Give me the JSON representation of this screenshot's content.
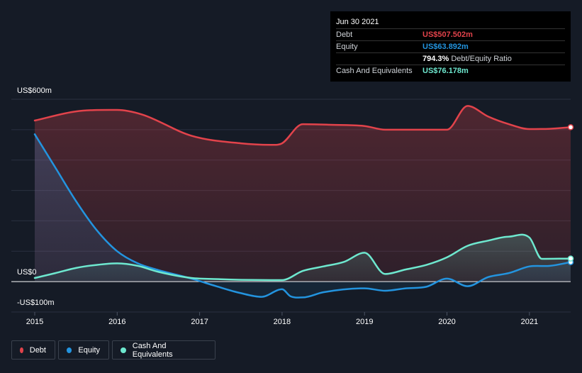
{
  "tooltip": {
    "date": "Jun 30 2021",
    "debt_label": "Debt",
    "debt_value": "US$507.502m",
    "equity_label": "Equity",
    "equity_value": "US$63.892m",
    "ratio_value": "794.3%",
    "ratio_label": "Debt/Equity Ratio",
    "cash_label": "Cash And Equivalents",
    "cash_value": "US$76.178m"
  },
  "legend": {
    "debt": "Debt",
    "equity": "Equity",
    "cash": "Cash And Equivalents"
  },
  "colors": {
    "debt": "#e2434b",
    "equity": "#2394df",
    "cash": "#6ee8cf",
    "background": "#151b26"
  },
  "chart_data": {
    "type": "area",
    "y_tick_labels": [
      "US$600m",
      "US$0",
      "-US$100m"
    ],
    "x_tick_labels": [
      "2015",
      "2016",
      "2017",
      "2018",
      "2019",
      "2020",
      "2021"
    ],
    "ylim": [
      -100,
      600
    ],
    "grid": true,
    "legend_position": "bottom-left",
    "series": [
      {
        "name": "Debt",
        "x": [
          2015.0,
          2015.5,
          2016.0,
          2016.3,
          2016.9,
          2017.5,
          2017.9,
          2018.0,
          2018.25,
          2018.6,
          2019.0,
          2019.25,
          2019.6,
          2020.0,
          2020.25,
          2020.5,
          2020.75,
          2021.0,
          2021.25,
          2021.5
        ],
        "y": [
          530,
          560,
          565,
          550,
          480,
          455,
          450,
          455,
          518,
          516,
          512,
          500,
          500,
          500,
          578,
          543,
          518,
          502,
          503,
          508
        ]
      },
      {
        "name": "Equity",
        "x": [
          2015.0,
          2015.25,
          2015.5,
          2015.75,
          2016.0,
          2016.25,
          2016.5,
          2016.9,
          2017.2,
          2017.5,
          2017.75,
          2018.0,
          2018.1,
          2018.25,
          2018.5,
          2019.0,
          2019.25,
          2019.5,
          2019.75,
          2020.0,
          2020.25,
          2020.5,
          2020.75,
          2021.0,
          2021.25,
          2021.5
        ],
        "y": [
          485,
          375,
          265,
          170,
          100,
          60,
          38,
          10,
          -15,
          -38,
          -50,
          -25,
          -48,
          -52,
          -35,
          -22,
          -30,
          -22,
          -17,
          10,
          -15,
          15,
          28,
          50,
          52,
          64
        ]
      },
      {
        "name": "Cash And Equivalents",
        "x": [
          2015.0,
          2015.25,
          2015.5,
          2015.75,
          2016.0,
          2016.25,
          2016.5,
          2016.9,
          2017.25,
          2017.5,
          2018.0,
          2018.25,
          2018.5,
          2018.75,
          2019.0,
          2019.25,
          2019.5,
          2019.75,
          2020.0,
          2020.25,
          2020.5,
          2020.75,
          2021.0,
          2021.15,
          2021.5
        ],
        "y": [
          12,
          28,
          45,
          55,
          60,
          52,
          32,
          12,
          8,
          6,
          5,
          35,
          50,
          65,
          95,
          25,
          40,
          55,
          80,
          118,
          135,
          148,
          145,
          75,
          76
        ]
      }
    ]
  }
}
